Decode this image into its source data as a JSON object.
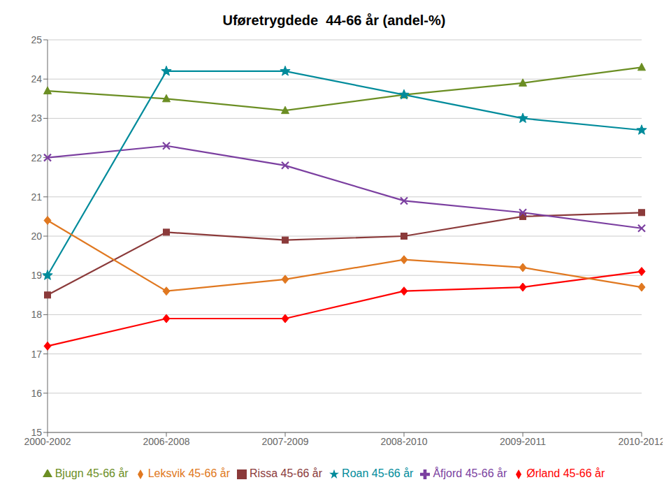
{
  "chart_data": {
    "type": "line",
    "title": "Uføretrygdede  44-66 år (andel-%)",
    "categories": [
      "2000-2002",
      "2006-2008",
      "2007-2009",
      "2008-2010",
      "2009-2011",
      "2010-2012"
    ],
    "series": [
      {
        "name": "Ørland 45-66 år",
        "color": "#FF0000",
        "marker": "diamond",
        "line_style": "solid",
        "values": [
          17.2,
          17.9,
          17.9,
          18.6,
          18.7,
          19.1
        ]
      },
      {
        "name": "Rissa 45-66 år",
        "color": "#8B3A3A",
        "marker": "square",
        "line_style": "solid",
        "values": [
          18.5,
          20.1,
          19.9,
          20.0,
          20.5,
          20.6
        ]
      },
      {
        "name": "Bjugn 45-66 år",
        "color": "#6B8E23",
        "marker": "triangle",
        "line_style": "solid",
        "values": [
          23.7,
          23.5,
          23.2,
          23.6,
          23.9,
          24.3
        ]
      },
      {
        "name": "Åfjord 45-66 år",
        "color": "#7B3FA0",
        "marker": "x",
        "line_style": "solid",
        "values": [
          22.0,
          22.3,
          21.8,
          20.9,
          20.6,
          20.2
        ]
      },
      {
        "name": "Roan 45-66 år",
        "color": "#008B9B",
        "marker": "star",
        "line_style": "solid",
        "values": [
          19.0,
          24.2,
          24.2,
          23.6,
          23.0,
          22.7
        ]
      },
      {
        "name": "Leksvik 45-66 år",
        "color": "#E07820",
        "marker": "diamond",
        "line_style": "solid",
        "values": [
          20.4,
          18.6,
          18.9,
          19.4,
          19.2,
          18.7
        ]
      }
    ],
    "ylim": [
      15,
      25
    ],
    "yticks": [
      15,
      16,
      17,
      18,
      19,
      20,
      21,
      22,
      23,
      24,
      25
    ],
    "grid": true,
    "legend": "bottom"
  }
}
